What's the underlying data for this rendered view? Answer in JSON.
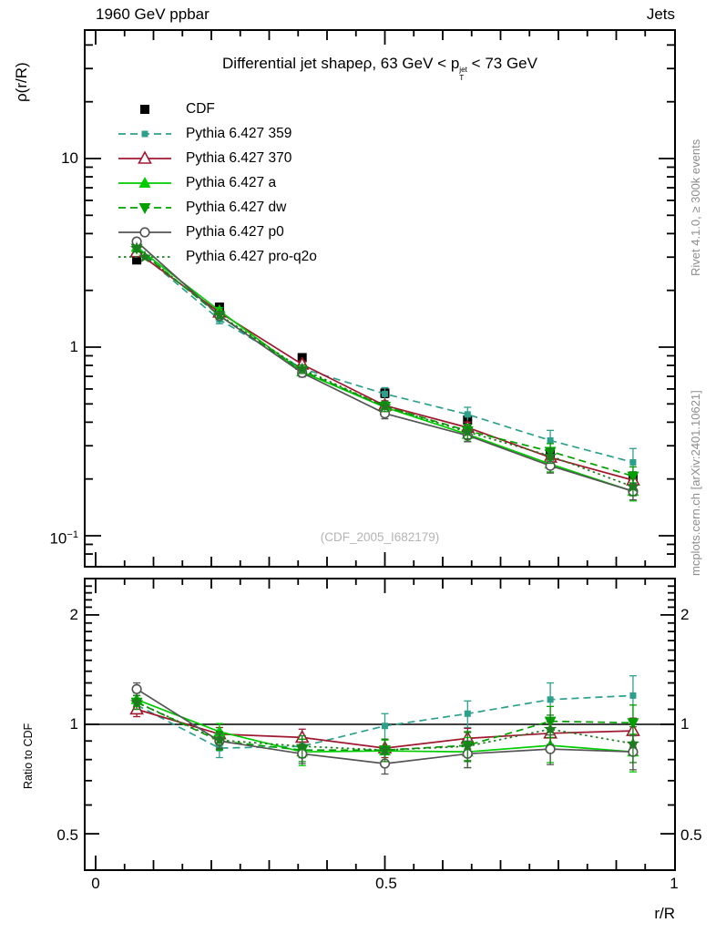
{
  "header": {
    "left": "1960 GeV ppbar",
    "right": "Jets"
  },
  "title": {
    "prefix": "Differential jet shapeρ, 63 GeV < p",
    "sup": "jet",
    "sub": "T",
    "suffix": " < 73 GeV"
  },
  "watermark": "(CDF_2005_I682179)",
  "side_notes": {
    "top": "Rivet 4.1.0, ≥ 300k events",
    "bottom": "mcplots.cern.ch [arXiv:2401.10621]"
  },
  "axes": {
    "main_ylabel": "ρ(r/R)",
    "ratio_ylabel": "Ratio to CDF",
    "xlabel": "r/R",
    "main_yticks": [
      "10",
      "1"
    ],
    "main_ytick_exp": {
      "base": "10",
      "exp": "−1"
    },
    "ratio_yticks": [
      "2",
      "1",
      "0.5"
    ],
    "xticks": [
      "0",
      "0.5",
      "1"
    ]
  },
  "chart_data": [
    {
      "type": "line",
      "title": "Differential jet shape rho, 63 GeV < pT(jet) < 73 GeV",
      "xlabel": "r/R",
      "ylabel": "rho(r/R)",
      "yscale": "log",
      "xlim": [
        -0.019,
        1.002
      ],
      "ylim": [
        0.068,
        48
      ],
      "grid": false,
      "legend_position": "upper-left-inside",
      "x": [
        0.071,
        0.214,
        0.357,
        0.5,
        0.643,
        0.786,
        0.929
      ],
      "series": [
        {
          "name": "CDF",
          "marker": "square-filled",
          "color": "#000000",
          "line": "none",
          "values": [
            2.9,
            1.63,
            0.88,
            0.57,
            0.41,
            0.275,
            0.205
          ],
          "yerr": [
            0.13,
            0.07,
            0.04,
            0.03,
            0.022,
            0.016,
            0.013
          ]
        },
        {
          "name": "Pythia 6.427 359",
          "marker": "square-filled-small",
          "color": "#2da08c",
          "line": "dashed",
          "values": [
            3.28,
            1.4,
            0.77,
            0.565,
            0.44,
            0.32,
            0.245
          ],
          "yerr": [
            0.16,
            0.07,
            0.04,
            0.045,
            0.04,
            0.042,
            0.045
          ]
        },
        {
          "name": "Pythia 6.427 370",
          "marker": "triangle-open",
          "color": "#a01830",
          "line": "solid",
          "values": [
            3.19,
            1.53,
            0.81,
            0.49,
            0.375,
            0.26,
            0.197
          ],
          "yerr": [
            0.13,
            0.06,
            0.035,
            0.028,
            0.025,
            0.02,
            0.017
          ]
        },
        {
          "name": "Pythia 6.427 a",
          "marker": "triangle-filled",
          "color": "#00cc00",
          "line": "solid",
          "values": [
            3.39,
            1.56,
            0.74,
            0.48,
            0.345,
            0.24,
            0.172
          ],
          "yerr": [
            0.13,
            0.06,
            0.04,
            0.03,
            0.028,
            0.022,
            0.019
          ]
        },
        {
          "name": "Pythia 6.427 dw",
          "marker": "triangle-down-filled",
          "color": "#00a000",
          "line": "dashed",
          "values": [
            3.34,
            1.47,
            0.75,
            0.485,
            0.36,
            0.28,
            0.207
          ],
          "yerr": [
            0.13,
            0.06,
            0.04,
            0.03,
            0.03,
            0.028,
            0.025
          ]
        },
        {
          "name": "Pythia 6.427 p0",
          "marker": "circle-open",
          "color": "#555555",
          "line": "solid",
          "values": [
            3.63,
            1.47,
            0.73,
            0.445,
            0.34,
            0.235,
            0.172
          ],
          "yerr": [
            0.14,
            0.06,
            0.035,
            0.028,
            0.025,
            0.02,
            0.017
          ]
        },
        {
          "name": "Pythia 6.427 pro-q2o",
          "marker": "star-filled",
          "color": "#1e7d1e",
          "line": "dotted",
          "values": [
            3.34,
            1.48,
            0.765,
            0.485,
            0.355,
            0.265,
            0.182
          ],
          "yerr": [
            0.13,
            0.06,
            0.04,
            0.03,
            0.028,
            0.023,
            0.019
          ]
        }
      ]
    },
    {
      "type": "line",
      "title": "Ratio to CDF",
      "ylabel": "Ratio to CDF",
      "yscale": "log",
      "xlim": [
        -0.019,
        1.002
      ],
      "ylim": [
        0.4,
        2.52
      ],
      "reference_line": 1.0,
      "x": [
        0.071,
        0.214,
        0.357,
        0.5,
        0.643,
        0.786,
        0.929
      ],
      "series": [
        {
          "name": "Pythia 6.427 359",
          "marker": "square-filled-small",
          "color": "#2da08c",
          "line": "dashed",
          "values": [
            1.13,
            0.86,
            0.87,
            0.99,
            1.07,
            1.17,
            1.2
          ],
          "yerr": [
            0.05,
            0.05,
            0.06,
            0.08,
            0.09,
            0.13,
            0.16
          ]
        },
        {
          "name": "Pythia 6.427 370",
          "marker": "triangle-open",
          "color": "#a01830",
          "line": "solid",
          "values": [
            1.1,
            0.94,
            0.92,
            0.86,
            0.915,
            0.945,
            0.96
          ],
          "yerr": [
            0.05,
            0.04,
            0.05,
            0.05,
            0.06,
            0.07,
            0.08
          ]
        },
        {
          "name": "Pythia 6.427 a",
          "marker": "triangle-filled",
          "color": "#00cc00",
          "line": "solid",
          "values": [
            1.17,
            0.955,
            0.84,
            0.845,
            0.84,
            0.875,
            0.84
          ],
          "yerr": [
            0.05,
            0.05,
            0.07,
            0.06,
            0.08,
            0.09,
            0.1
          ]
        },
        {
          "name": "Pythia 6.427 dw",
          "marker": "triangle-down-filled",
          "color": "#00a000",
          "line": "dashed",
          "values": [
            1.15,
            0.9,
            0.85,
            0.85,
            0.875,
            1.02,
            1.01
          ],
          "yerr": [
            0.05,
            0.05,
            0.06,
            0.06,
            0.08,
            0.1,
            0.12
          ]
        },
        {
          "name": "Pythia 6.427 p0",
          "marker": "circle-open",
          "color": "#555555",
          "line": "solid",
          "values": [
            1.25,
            0.9,
            0.83,
            0.78,
            0.83,
            0.855,
            0.84
          ],
          "yerr": [
            0.05,
            0.04,
            0.05,
            0.05,
            0.07,
            0.08,
            0.09
          ]
        },
        {
          "name": "Pythia 6.427 pro-q2o",
          "marker": "star-filled",
          "color": "#1e7d1e",
          "line": "dotted",
          "values": [
            1.15,
            0.905,
            0.87,
            0.85,
            0.87,
            0.97,
            0.885
          ],
          "yerr": [
            0.05,
            0.05,
            0.06,
            0.06,
            0.08,
            0.09,
            0.1
          ]
        }
      ]
    }
  ]
}
